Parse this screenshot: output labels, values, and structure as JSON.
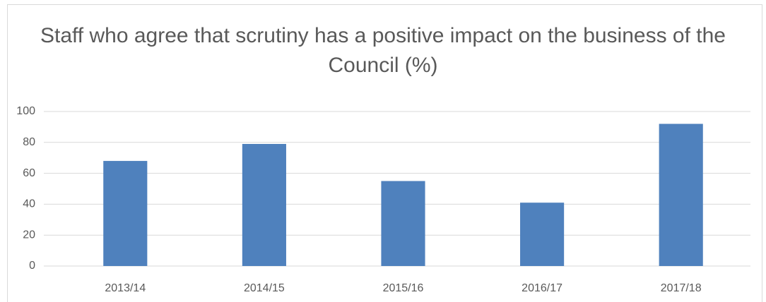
{
  "chart_data": {
    "type": "bar",
    "title": "Staff who agree that scrutiny has a positive impact on the business of the Council (%)",
    "categories": [
      "2013/14",
      "2014/15",
      "2015/16",
      "2016/17",
      "2017/18"
    ],
    "values": [
      68,
      79,
      55,
      41,
      92
    ],
    "color": "#4f81bd",
    "ylim": [
      0,
      100
    ],
    "yticks": [
      0,
      20,
      40,
      60,
      80,
      100
    ],
    "grid": true
  }
}
